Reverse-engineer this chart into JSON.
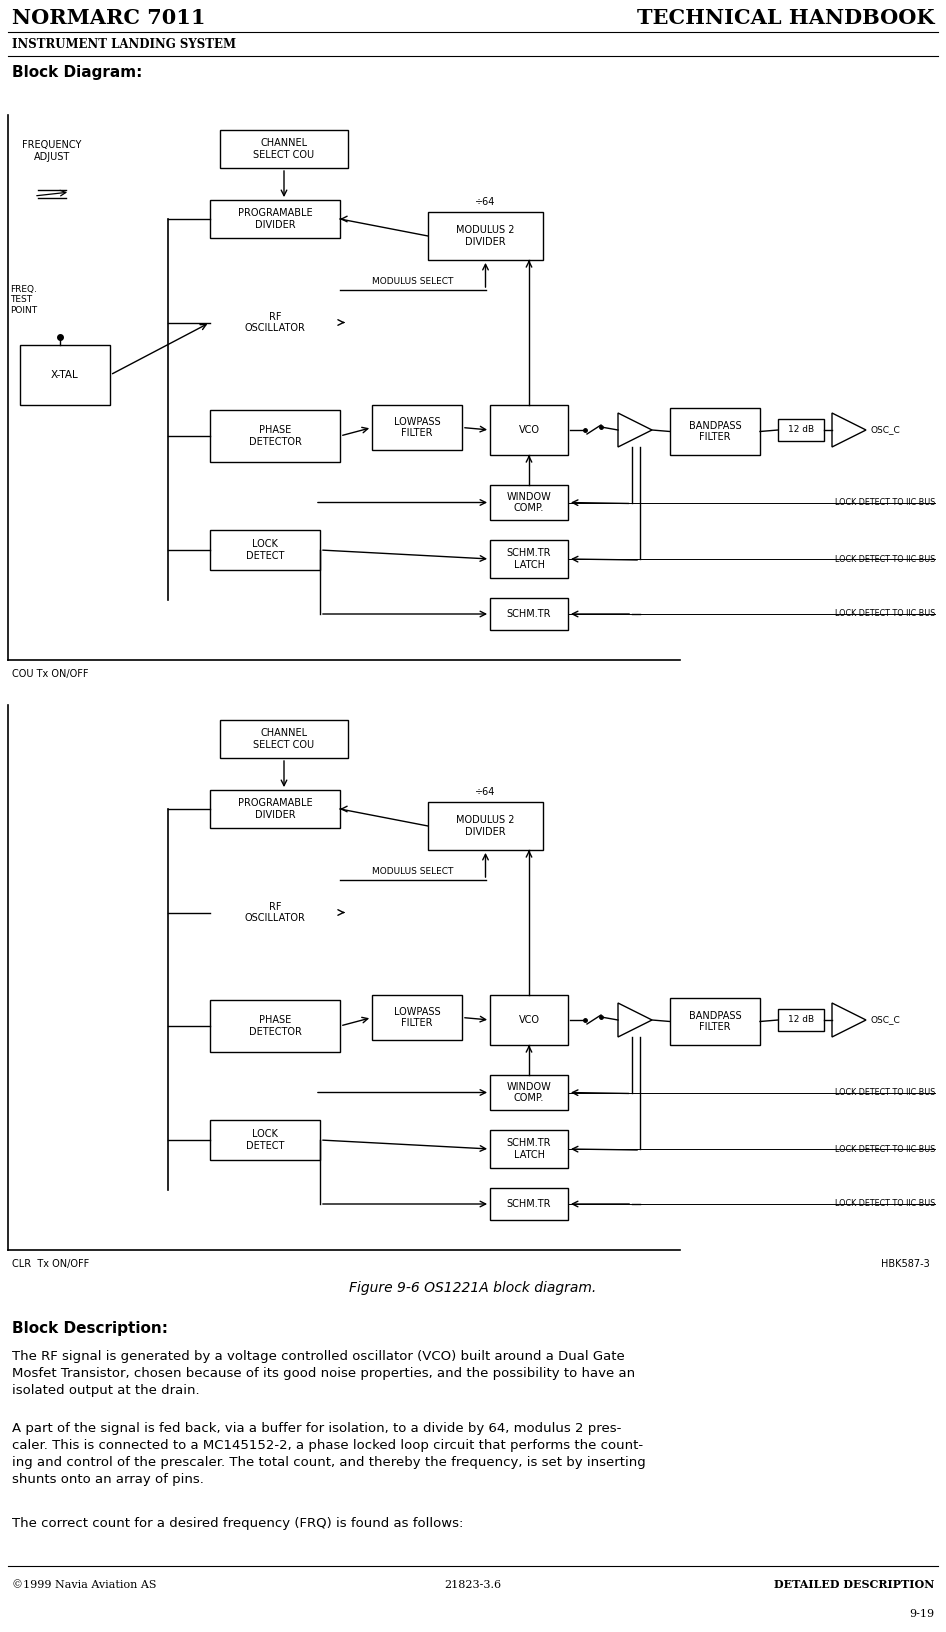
{
  "title_left": "NORMARC 7011",
  "title_right": "TECHNICAL HANDBOOK",
  "subtitle": "INSTRUMENT LANDING SYSTEM",
  "block_diagram_title": "Block Diagram:",
  "figure_caption": "Figure 9-6 OS1221A block diagram.",
  "block_desc_title": "Block Description:",
  "paragraph1": "The RF signal is generated by a voltage controlled oscillator (VCO) built around a Dual Gate\nMosfet Transistor, chosen because of its good noise properties, and the possibility to have an\nisolated output at the drain.",
  "paragraph2": "A part of the signal is fed back, via a buffer for isolation, to a divide by 64, modulus 2 pres-\ncaler. This is connected to a MC145152-2, a phase locked loop circuit that performs the count-\ning and control of the prescaler. The total count, and thereby the frequency, is set by inserting\nshunts onto an array of pins.",
  "paragraph3": "The correct count for a desired frequency (FRQ) is found as follows:",
  "footer_left": "©1999 Navia Aviation AS",
  "footer_center": "21823-3.6",
  "footer_right": "DETAILED DESCRIPTION",
  "footer_page": "9-19",
  "bg_color": "#ffffff",
  "line_color": "#000000"
}
